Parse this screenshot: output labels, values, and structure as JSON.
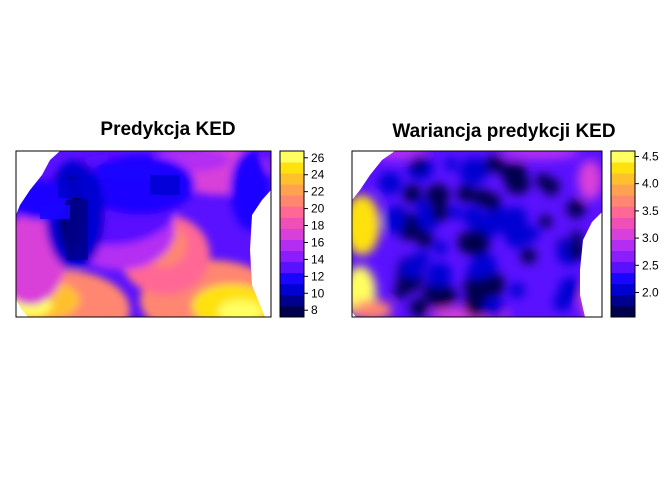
{
  "palette": [
    "#00004C",
    "#00008E",
    "#0000D2",
    "#1A05FF",
    "#5A11FF",
    "#8A1EFF",
    "#B42DF3",
    "#D93FD9",
    "#F04FB8",
    "#FF6794",
    "#FF8671",
    "#FFA24F",
    "#FFC02E",
    "#FFE10E",
    "#FFFF60"
  ],
  "chart_data": [
    {
      "type": "heatmap",
      "title": "Predykcja KED",
      "legend_ticks": [
        "8",
        "10",
        "12",
        "14",
        "16",
        "18",
        "20",
        "22",
        "24",
        "26"
      ],
      "zlim": [
        7.2,
        26.8
      ],
      "grid_on": false,
      "legend_placement": "right"
    },
    {
      "type": "heatmap",
      "title": "Wariancja predykcji KED",
      "legend_ticks": [
        "2.0",
        "2.5",
        "3.0",
        "3.5",
        "4.0",
        "4.5"
      ],
      "zlim": [
        1.55,
        4.6
      ],
      "grid_on": false,
      "legend_placement": "right"
    }
  ]
}
